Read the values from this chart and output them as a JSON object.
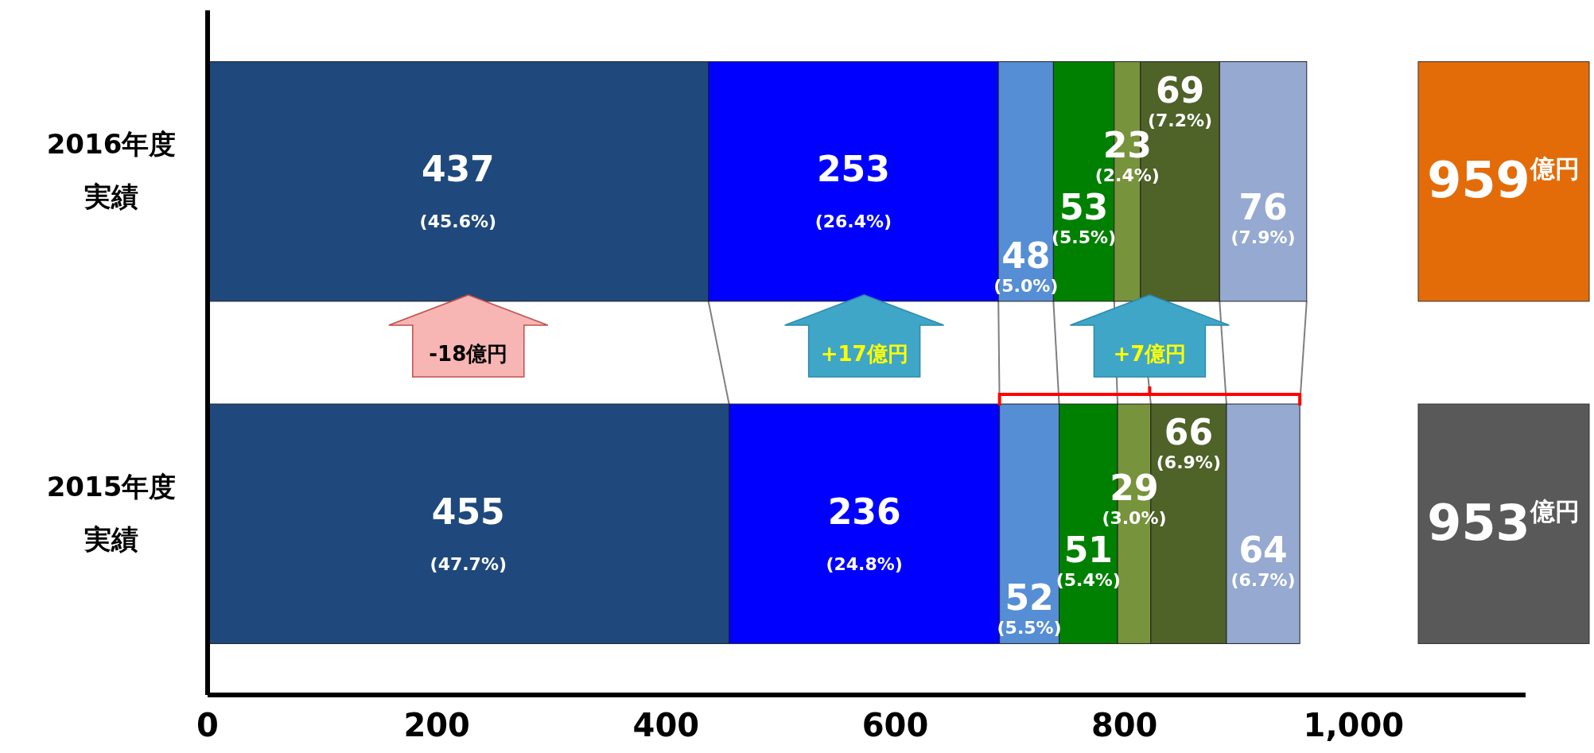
{
  "chart_data": {
    "type": "bar",
    "orientation": "horizontal",
    "stacked": true,
    "categories": [
      "2016年度実績",
      "2015年度実績"
    ],
    "series": [
      {
        "color": "#1f497d",
        "values": [
          437,
          455
        ],
        "value_labels": [
          "437\n(45.6%)",
          "455\n(47.7%)"
        ]
      },
      {
        "color": "#0000ff",
        "values": [
          253,
          236
        ],
        "value_labels": [
          "253\n(26.4%)",
          "236\n(24.8%)"
        ]
      },
      {
        "color": "#558ed5",
        "values": [
          48,
          52
        ],
        "value_labels": [
          "48\n(5.0%)",
          "52\n(5.5%)"
        ]
      },
      {
        "color": "#008000",
        "values": [
          53,
          51
        ],
        "value_labels": [
          "53\n(5.5%)",
          "51\n(5.4%)"
        ]
      },
      {
        "color": "#77933c",
        "values": [
          23,
          29
        ],
        "value_labels": [
          "23\n(2.4%)",
          "29\n(3.0%)"
        ]
      },
      {
        "color": "#4f6228",
        "values": [
          69,
          66
        ],
        "value_labels": [
          "69\n(7.2%)",
          "66\n(6.9%)"
        ]
      },
      {
        "color": "#95a9d1",
        "values": [
          76,
          64
        ],
        "value_labels": [
          "76\n(7.9%)",
          "64\n(6.7%)"
        ]
      }
    ],
    "xlim": [
      0,
      1150
    ],
    "xticks": [
      0,
      200,
      400,
      600,
      800,
      {
        "value": 1000,
        "label": "1,000"
      }
    ],
    "totals": [
      "959$^{億円}$",
      "953$^{億円}$"
    ],
    "annotations": [
      "-18億円",
      "+17億円",
      "+7億円"
    ]
  }
}
